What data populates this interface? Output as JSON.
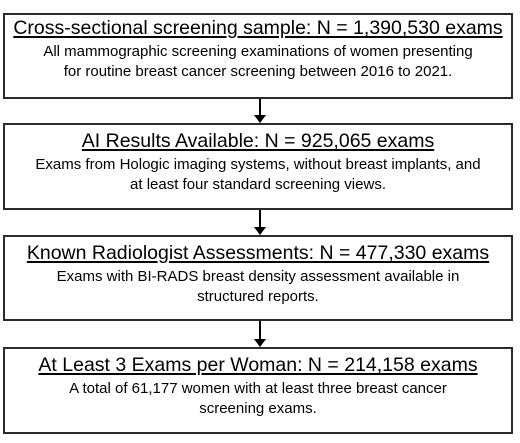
{
  "flowchart": {
    "steps": [
      {
        "title": "Cross-sectional screening sample: N = 1,390,530 exams",
        "description_lines": [
          "All mammographic screening examinations of women presenting",
          "for routine breast cancer screening between 2016 to 2021."
        ]
      },
      {
        "title": "AI Results Available: N = 925,065 exams",
        "description_lines": [
          "Exams from Hologic imaging systems, without breast implants, and",
          "at least four standard screening views."
        ]
      },
      {
        "title": "Known Radiologist Assessments: N = 477,330 exams",
        "description_lines": [
          "Exams with BI-RADS breast density assessment available in",
          "structured reports."
        ]
      },
      {
        "title": "At Least 3 Exams per Woman: N = 214,158 exams",
        "description_lines": [
          "A total of 61,177 women with at least three breast cancer",
          "screening exams."
        ]
      }
    ],
    "colors": {
      "box_border": "#2b2b2b",
      "arrow": "#000000",
      "text": "#000000",
      "background": "#ffffff"
    }
  }
}
